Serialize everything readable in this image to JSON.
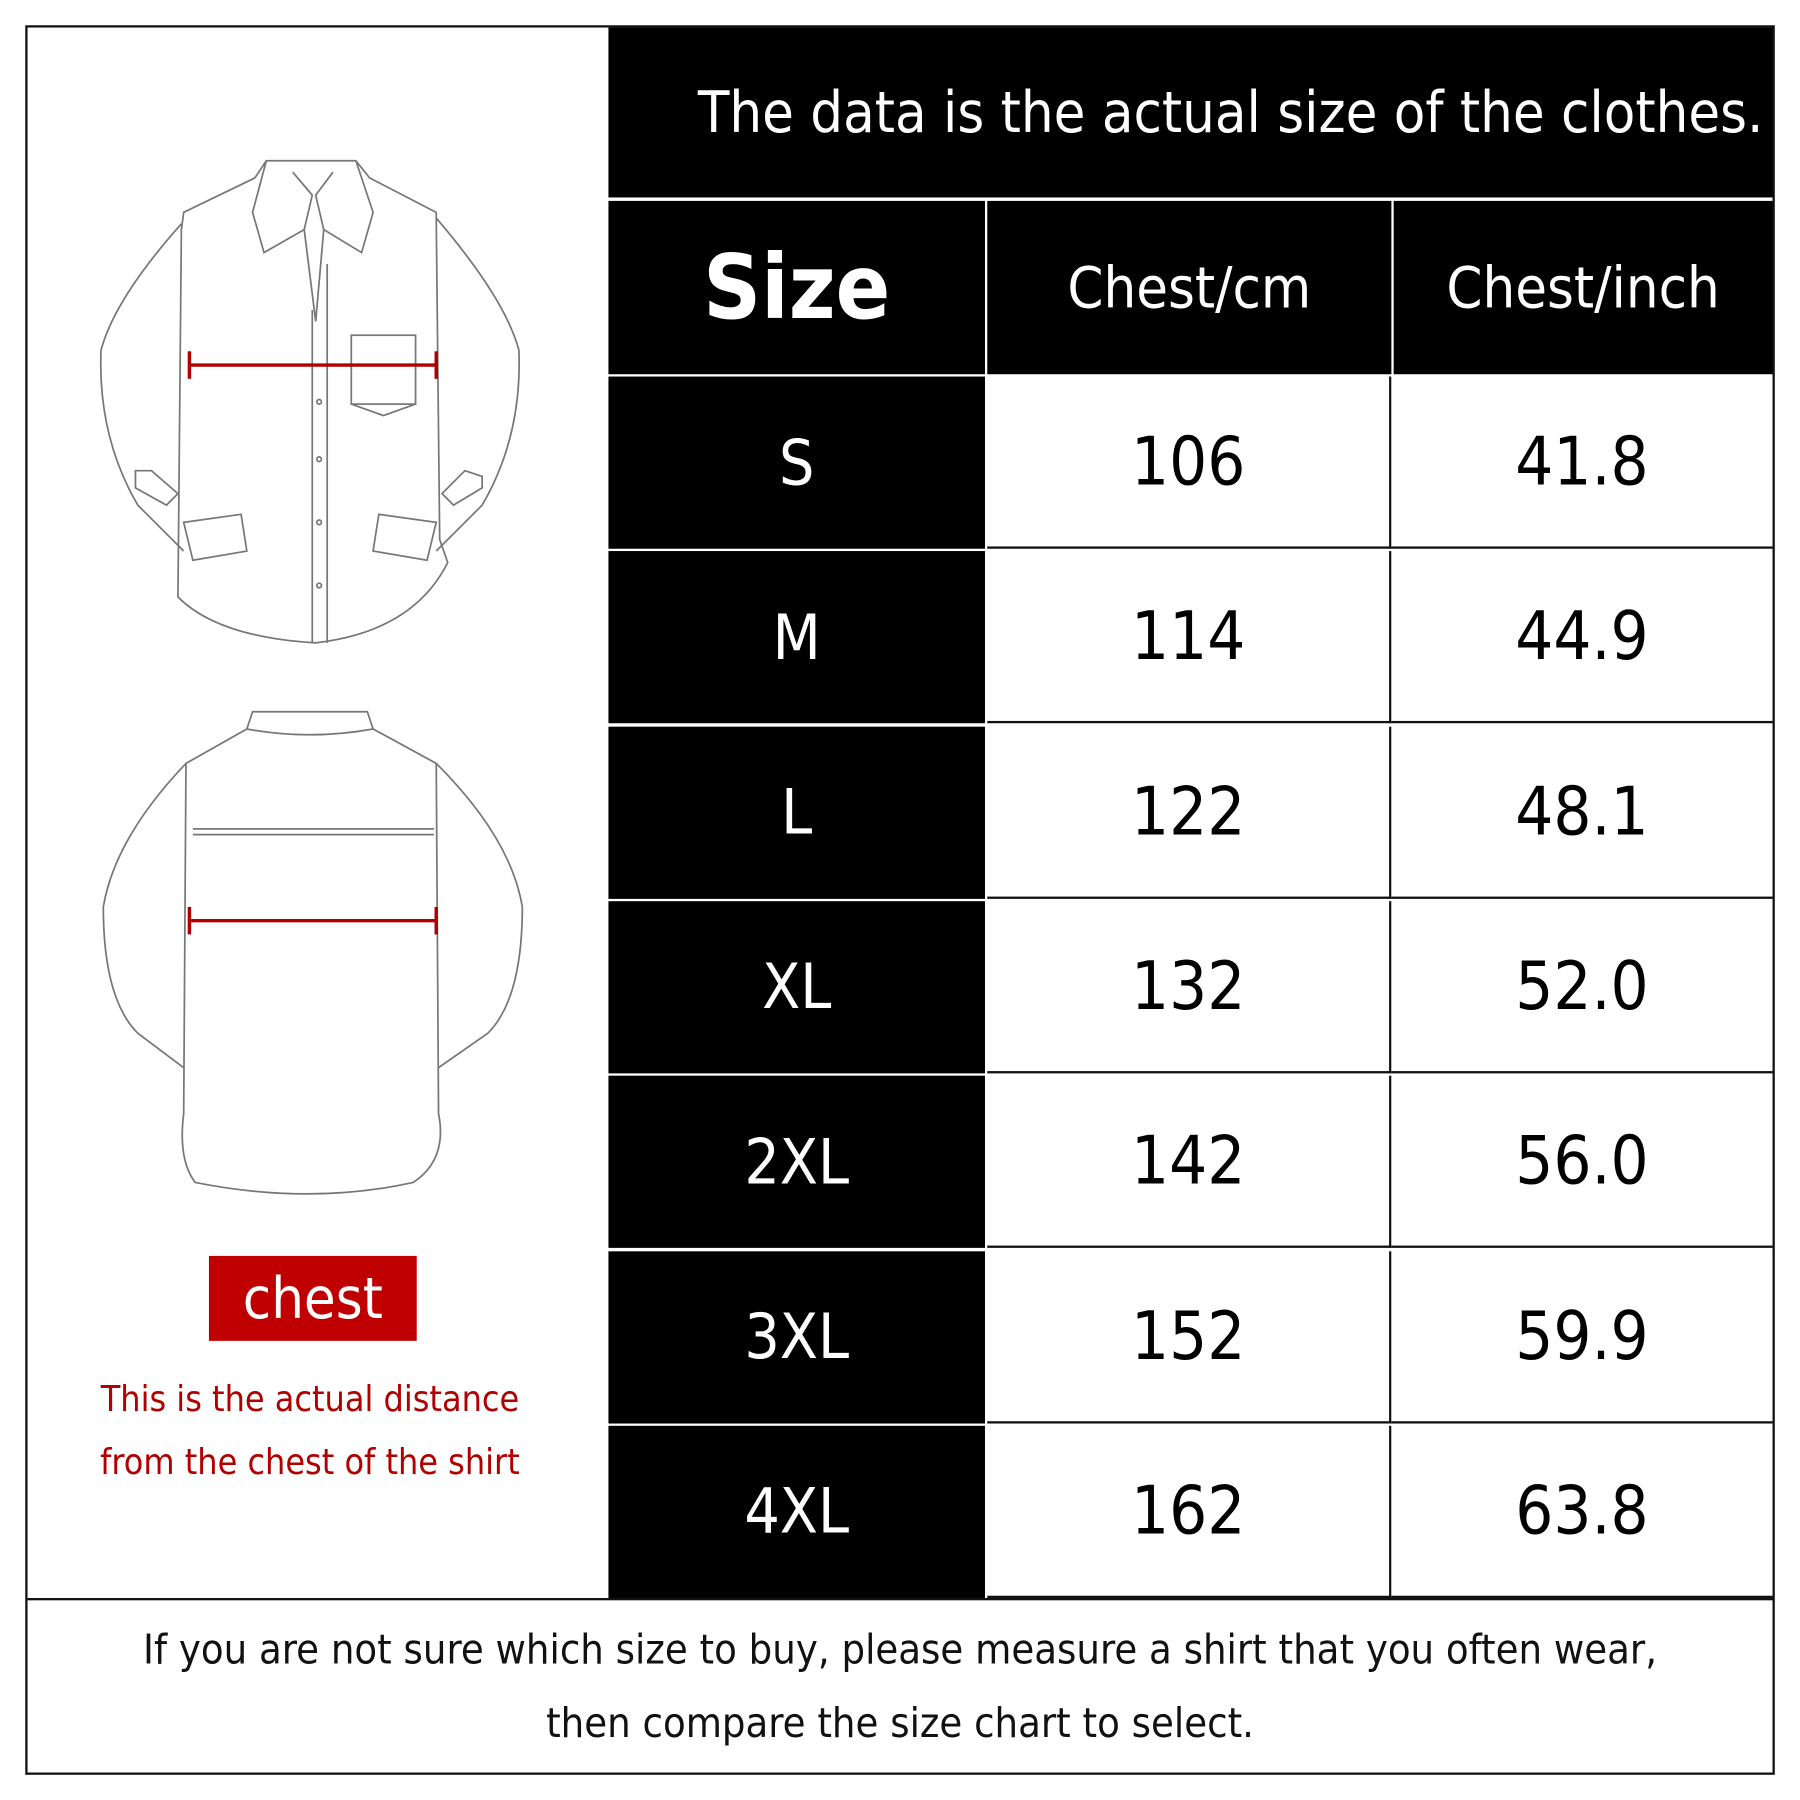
{
  "title": "The data is the actual size of the clothes.",
  "headers": {
    "size": "Size",
    "chest_cm": "Chest/cm",
    "chest_inch": "Chest/inch"
  },
  "rows": [
    {
      "size": "S",
      "cm": "106",
      "inch": "41.8"
    },
    {
      "size": "M",
      "cm": "114",
      "inch": "44.9"
    },
    {
      "size": "L",
      "cm": "122",
      "inch": "48.1"
    },
    {
      "size": "XL",
      "cm": "132",
      "inch": "52.0"
    },
    {
      "size": "2XL",
      "cm": "142",
      "inch": "56.0"
    },
    {
      "size": "3XL",
      "cm": "152",
      "inch": "59.9"
    },
    {
      "size": "4XL",
      "cm": "162",
      "inch": "63.8"
    }
  ],
  "legend": {
    "label": "chest",
    "line1": "This is the actual distance",
    "line2": "from the chest of the shirt"
  },
  "footer": {
    "line1": "If you are not sure which size to buy, please measure a shirt that you often wear,",
    "line2": "then compare the size chart to select."
  },
  "colors": {
    "accent": "#b00000",
    "table_dark": "#000000"
  }
}
